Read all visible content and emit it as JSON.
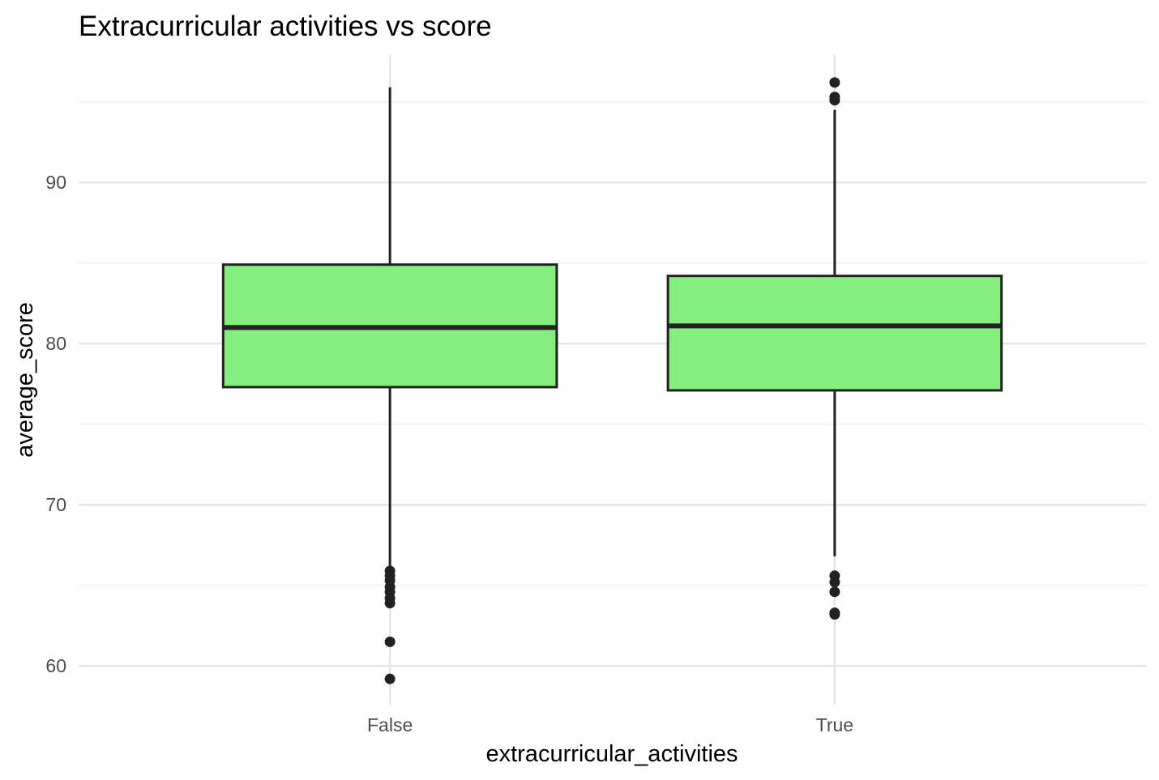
{
  "chart_data": {
    "type": "boxplot",
    "title": "Extracurricular activities vs score",
    "xlabel": "extracurricular_activities",
    "ylabel": "average_score",
    "categories": [
      "False",
      "True"
    ],
    "boxes": [
      {
        "category": "False",
        "whisker_low": 66.0,
        "q1": 77.3,
        "median": 81.0,
        "q3": 84.9,
        "whisker_high": 95.9,
        "outliers": [
          65.9,
          65.6,
          65.3,
          64.9,
          64.6,
          64.2,
          63.9,
          61.5,
          59.2
        ]
      },
      {
        "category": "True",
        "whisker_low": 66.8,
        "q1": 77.1,
        "median": 81.1,
        "q3": 84.2,
        "whisker_high": 94.5,
        "outliers": [
          96.2,
          95.3,
          95.1,
          65.6,
          65.2,
          64.6,
          63.3,
          63.2
        ]
      }
    ],
    "yticks": [
      60,
      70,
      80,
      90
    ],
    "ylim": [
      57.6,
      97.9
    ],
    "grid": true,
    "colors": {
      "box_fill": "#84ee7f",
      "box_stroke": "#222222",
      "grid_major": "#e5e5e5",
      "grid_minor": "#f0f0f0"
    }
  }
}
